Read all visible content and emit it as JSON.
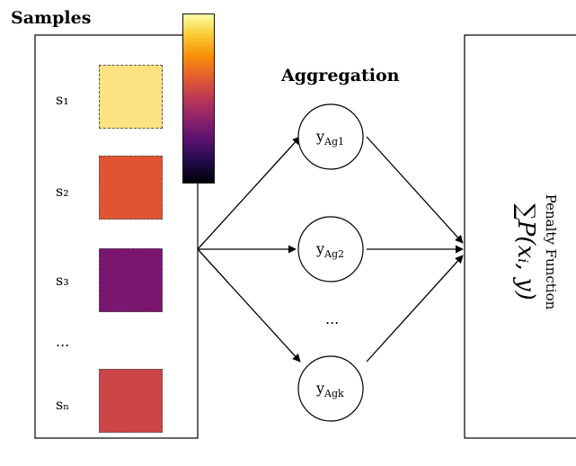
{
  "samples_title": "Samples",
  "aggregation_title": "Aggregation",
  "samples": [
    {
      "label": "s₁",
      "color": "#fde282"
    },
    {
      "label": "s₂",
      "color": "#e05432"
    },
    {
      "label": "s₃",
      "color": "#7a1670"
    },
    {
      "label": "sₙ",
      "color": "#cc4648"
    }
  ],
  "samples_ellipsis": "...",
  "aggregations": [
    "yₐ₉₁",
    "yₐ₉₂",
    "yₐ₉ₖ"
  ],
  "aggregation_sub": [
    "Ag1",
    "Ag2",
    "Agk"
  ],
  "aggregation_ellipsis": "...",
  "penalty": {
    "label": "Penalty Function",
    "formula": "∑P(xᵢ, y)"
  },
  "colorbar": {
    "colormap": "inferno",
    "stops": [
      "#fcfea4",
      "#f9c932",
      "#f98e09",
      "#e55c30",
      "#bc3754",
      "#8a226a",
      "#57106e",
      "#210c4a",
      "#000004"
    ]
  }
}
